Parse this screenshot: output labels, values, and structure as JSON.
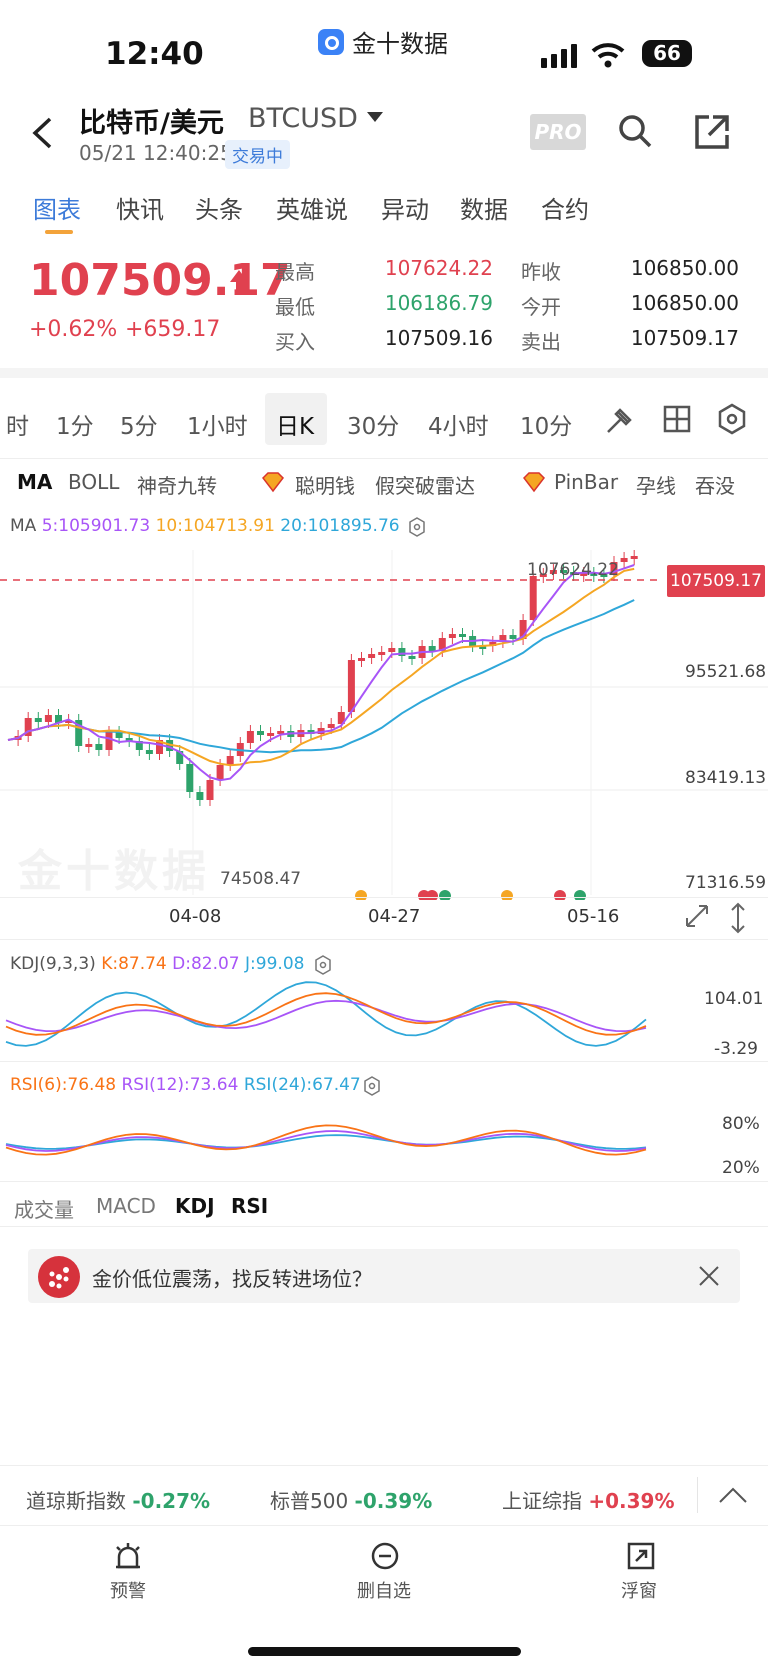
{
  "status": {
    "time": "12:40",
    "app_name": "金十数据",
    "battery": "66"
  },
  "header": {
    "title": "比特币/美元",
    "symbol": "BTCUSD",
    "datetime": "05/21 12:40:25",
    "trade_status": "交易中",
    "pro_label": "PRO"
  },
  "tabs": [
    {
      "label": "图表"
    },
    {
      "label": "快讯"
    },
    {
      "label": "头条"
    },
    {
      "label": "英雄说"
    },
    {
      "label": "异动"
    },
    {
      "label": "数据"
    },
    {
      "label": "合约"
    }
  ],
  "quote": {
    "price": "107509.17",
    "change_pct": "+0.62%",
    "change_abs": "+659.17",
    "high_label": "最高",
    "high": "107624.22",
    "low_label": "最低",
    "low": "106186.79",
    "bid_label": "买入",
    "bid": "107509.16",
    "prev_close_label": "昨收",
    "prev_close": "106850.00",
    "open_label": "今开",
    "open": "106850.00",
    "ask_label": "卖出",
    "ask": "107509.17"
  },
  "periods": [
    {
      "label": "时"
    },
    {
      "label": "1分"
    },
    {
      "label": "5分"
    },
    {
      "label": "1小时"
    },
    {
      "label": "日K"
    },
    {
      "label": "30分"
    },
    {
      "label": "4小时"
    },
    {
      "label": "10分"
    }
  ],
  "indicators": [
    {
      "label": "MA"
    },
    {
      "label": "BOLL"
    },
    {
      "label": "神奇九转"
    },
    {
      "label": "聪明钱"
    },
    {
      "label": "假突破雷达"
    },
    {
      "label": "PinBar"
    },
    {
      "label": "孕线"
    },
    {
      "label": "吞没"
    }
  ],
  "ma_legend": {
    "name": "MA",
    "ma5": "5:105901.73",
    "ma10": "10:104713.91",
    "ma20": "20:101895.76"
  },
  "price_axis": [
    "95521.68",
    "83419.13",
    "71316.59"
  ],
  "price_tag": "107509.17",
  "high_marker": "107624.22",
  "low_marker": "74508.47",
  "dates": [
    "04-08",
    "04-27",
    "05-16"
  ],
  "kdj_legend": {
    "name": "KDJ(9,3,3)",
    "k": "K:87.74",
    "d": "D:82.07",
    "j": "J:99.08"
  },
  "kdj_axis": [
    "104.01",
    "-3.29"
  ],
  "rsi_legend": {
    "r6": "RSI(6):76.48",
    "r12": "RSI(12):73.64",
    "r24": "RSI(24):67.47"
  },
  "rsi_axis": [
    "80%",
    "20%"
  ],
  "sub_tabs": [
    {
      "label": "成交量"
    },
    {
      "label": "MACD"
    },
    {
      "label": "KDJ"
    },
    {
      "label": "RSI"
    }
  ],
  "banner": {
    "text": "金价低位震荡，找反转进场位？"
  },
  "tickers": [
    {
      "name": "道琼斯指数",
      "value": "-0.27%"
    },
    {
      "name": "标普500",
      "value": "-0.39%"
    },
    {
      "name": "上证综指",
      "value": "+0.39%"
    }
  ],
  "bottom_nav": [
    {
      "label": "预警"
    },
    {
      "label": "删自选"
    },
    {
      "label": "浮窗"
    }
  ],
  "colors": {
    "up": "#e0414f",
    "down": "#2ea36b",
    "accent": "#3d7bd9",
    "ma5": "#a855f7",
    "ma10": "#f5a623",
    "ma20": "#2fa7d9"
  }
}
